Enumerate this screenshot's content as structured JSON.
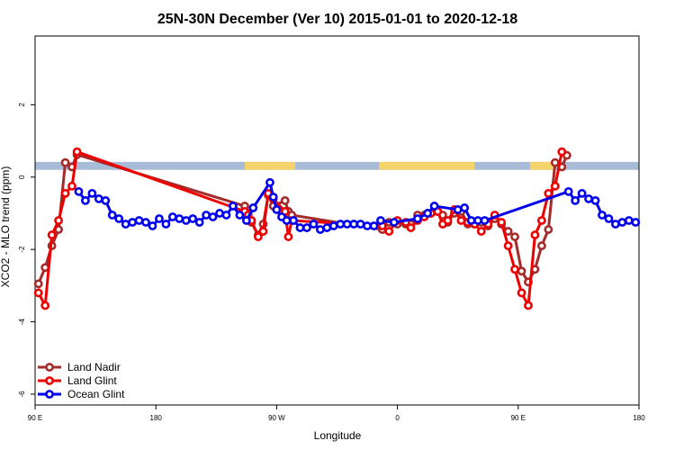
{
  "chart_data": {
    "type": "line",
    "title": "25N-30N December (Ver 10)   2015-01-01 to 2020-12-18",
    "xlabel": "Longitude",
    "ylabel": "XCO2 - MLO trend (ppm)",
    "xlim": [
      0,
      360
    ],
    "ylim": [
      -6.3,
      3.9
    ],
    "x_ticks": [
      {
        "value": 0,
        "label": "90 E"
      },
      {
        "value": 72,
        "label": "180"
      },
      {
        "value": 144,
        "label": "90 W"
      },
      {
        "value": 216,
        "label": "0"
      },
      {
        "value": 288,
        "label": "90 E"
      },
      {
        "value": 360,
        "label": "180"
      }
    ],
    "y_ticks": [
      {
        "value": -6,
        "label": "-6"
      },
      {
        "value": -4,
        "label": "-4"
      },
      {
        "value": -2,
        "label": "-2"
      },
      {
        "value": 0,
        "label": "0"
      },
      {
        "value": 2,
        "label": "2"
      }
    ],
    "grid": false,
    "legend_position": "bottom-left",
    "land_mask_band": {
      "y_range": [
        0.2,
        0.42
      ],
      "ocean_color": "#a8bcd8",
      "land_color": "#f5d36a",
      "land_segments": [
        [
          125,
          155
        ],
        [
          205,
          262
        ],
        [
          295,
          310
        ]
      ]
    },
    "series": [
      {
        "name": "Land Nadir",
        "color": "#a52a2a",
        "points": [
          [
            2,
            -2.95
          ],
          [
            6,
            -2.5
          ],
          [
            10,
            -1.9
          ],
          [
            14,
            -1.45
          ],
          [
            18,
            0.4
          ],
          [
            22,
            0.28
          ],
          [
            25,
            0.62
          ],
          [
            125,
            -0.8
          ],
          [
            127,
            -1.0
          ],
          [
            129,
            -1.25
          ],
          [
            133,
            -1.6
          ],
          [
            136,
            -1.3
          ],
          [
            139,
            -0.5
          ],
          [
            142,
            -0.8
          ],
          [
            149,
            -0.65
          ],
          [
            151,
            -0.95
          ],
          [
            153,
            -1.05
          ],
          [
            207,
            -1.45
          ],
          [
            211,
            -1.25
          ],
          [
            216,
            -1.3
          ],
          [
            221,
            -1.3
          ],
          [
            224,
            -1.3
          ],
          [
            228,
            -1.05
          ],
          [
            232,
            -1.05
          ],
          [
            236,
            -1.0
          ],
          [
            240,
            -0.95
          ],
          [
            243,
            -1.05
          ],
          [
            246,
            -1.25
          ],
          [
            250,
            -1.0
          ],
          [
            254,
            -0.95
          ],
          [
            258,
            -1.3
          ],
          [
            262,
            -1.3
          ],
          [
            266,
            -1.25
          ],
          [
            270,
            -1.35
          ],
          [
            274,
            -1.15
          ],
          [
            278,
            -1.3
          ],
          [
            282,
            -1.5
          ],
          [
            286,
            -1.65
          ],
          [
            290,
            -2.6
          ],
          [
            294,
            -2.9
          ],
          [
            298,
            -2.55
          ],
          [
            302,
            -1.9
          ],
          [
            306,
            -1.45
          ],
          [
            310,
            0.4
          ],
          [
            314,
            0.28
          ],
          [
            317,
            0.6
          ]
        ]
      },
      {
        "name": "Land Glint",
        "color": "#ee0000",
        "points": [
          [
            2,
            -3.2
          ],
          [
            6,
            -3.55
          ],
          [
            10,
            -1.6
          ],
          [
            14,
            -1.2
          ],
          [
            18,
            -0.45
          ],
          [
            22,
            -0.25
          ],
          [
            25,
            0.7
          ],
          [
            125,
            -0.95
          ],
          [
            127,
            -1.05
          ],
          [
            129,
            -1.2
          ],
          [
            133,
            -1.65
          ],
          [
            136,
            -1.5
          ],
          [
            139,
            -0.45
          ],
          [
            142,
            -0.6
          ],
          [
            149,
            -0.95
          ],
          [
            151,
            -1.65
          ],
          [
            153,
            -1.2
          ],
          [
            207,
            -1.35
          ],
          [
            211,
            -1.5
          ],
          [
            216,
            -1.2
          ],
          [
            221,
            -1.25
          ],
          [
            224,
            -1.4
          ],
          [
            228,
            -1.2
          ],
          [
            232,
            -1.1
          ],
          [
            236,
            -1.0
          ],
          [
            240,
            -0.95
          ],
          [
            243,
            -1.3
          ],
          [
            246,
            -1.2
          ],
          [
            250,
            -0.9
          ],
          [
            254,
            -1.2
          ],
          [
            258,
            -1.25
          ],
          [
            262,
            -1.3
          ],
          [
            266,
            -1.5
          ],
          [
            270,
            -1.3
          ],
          [
            274,
            -1.05
          ],
          [
            278,
            -1.25
          ],
          [
            282,
            -1.9
          ],
          [
            286,
            -2.55
          ],
          [
            290,
            -3.2
          ],
          [
            294,
            -3.55
          ],
          [
            298,
            -1.6
          ],
          [
            302,
            -1.2
          ],
          [
            306,
            -0.45
          ],
          [
            310,
            -0.25
          ],
          [
            314,
            0.7
          ]
        ]
      },
      {
        "name": "Ocean Glint",
        "color": "#0000ee",
        "points": [
          [
            26,
            -0.4
          ],
          [
            30,
            -0.65
          ],
          [
            34,
            -0.45
          ],
          [
            38,
            -0.6
          ],
          [
            42,
            -0.65
          ],
          [
            46,
            -1.05
          ],
          [
            50,
            -1.15
          ],
          [
            54,
            -1.3
          ],
          [
            58,
            -1.25
          ],
          [
            62,
            -1.2
          ],
          [
            66,
            -1.25
          ],
          [
            70,
            -1.35
          ],
          [
            74,
            -1.15
          ],
          [
            78,
            -1.3
          ],
          [
            82,
            -1.1
          ],
          [
            86,
            -1.15
          ],
          [
            90,
            -1.2
          ],
          [
            94,
            -1.15
          ],
          [
            98,
            -1.25
          ],
          [
            102,
            -1.05
          ],
          [
            106,
            -1.1
          ],
          [
            110,
            -1.0
          ],
          [
            114,
            -1.05
          ],
          [
            118,
            -0.8
          ],
          [
            122,
            -1.05
          ],
          [
            126,
            -1.2
          ],
          [
            130,
            -0.85
          ],
          [
            140,
            -0.15
          ],
          [
            142,
            -0.55
          ],
          [
            144,
            -0.9
          ],
          [
            147,
            -1.1
          ],
          [
            150,
            -1.2
          ],
          [
            154,
            -1.2
          ],
          [
            158,
            -1.4
          ],
          [
            162,
            -1.4
          ],
          [
            166,
            -1.3
          ],
          [
            170,
            -1.45
          ],
          [
            174,
            -1.4
          ],
          [
            178,
            -1.35
          ],
          [
            182,
            -1.3
          ],
          [
            186,
            -1.3
          ],
          [
            190,
            -1.3
          ],
          [
            194,
            -1.3
          ],
          [
            198,
            -1.35
          ],
          [
            202,
            -1.35
          ],
          [
            206,
            -1.2
          ],
          [
            214,
            -1.25
          ],
          [
            228,
            -1.15
          ],
          [
            234,
            -1.0
          ],
          [
            238,
            -0.8
          ],
          [
            252,
            -0.9
          ],
          [
            256,
            -0.85
          ],
          [
            260,
            -1.2
          ],
          [
            264,
            -1.2
          ],
          [
            268,
            -1.2
          ],
          [
            318,
            -0.4
          ],
          [
            322,
            -0.65
          ],
          [
            326,
            -0.45
          ],
          [
            330,
            -0.6
          ],
          [
            334,
            -0.65
          ],
          [
            338,
            -1.05
          ],
          [
            342,
            -1.15
          ],
          [
            346,
            -1.3
          ],
          [
            350,
            -1.25
          ],
          [
            354,
            -1.2
          ],
          [
            358,
            -1.25
          ],
          [
            362,
            -1.35
          ]
        ]
      }
    ]
  }
}
